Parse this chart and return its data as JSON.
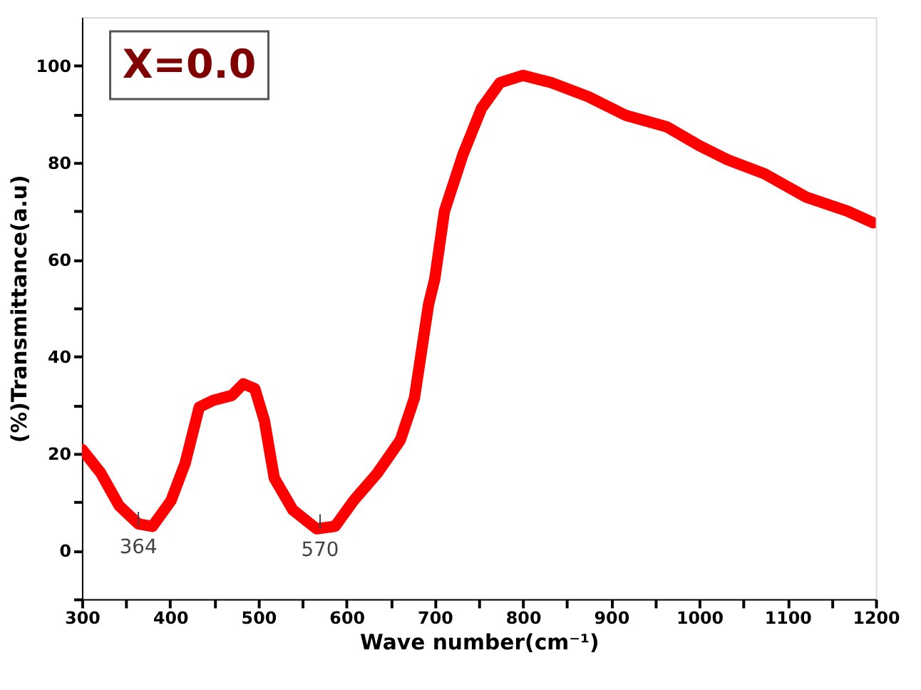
{
  "chart_data": {
    "type": "line",
    "title": "X=0.0",
    "xlabel": "Wave number(cm⁻¹)",
    "ylabel": "(%)Transmittance(a.u)",
    "x": [
      300,
      321,
      342,
      364,
      380,
      401,
      417,
      433,
      449,
      470,
      483,
      496,
      507,
      518,
      539,
      566,
      587,
      608,
      635,
      661,
      677,
      693,
      700,
      711,
      732,
      753,
      774,
      800,
      832,
      874,
      916,
      963,
      1000,
      1032,
      1074,
      1121,
      1168,
      1197
    ],
    "series": [
      {
        "color": "#ff0000",
        "values": [
          20.9,
          16.1,
          9.3,
          5.5,
          5,
          10.3,
          18,
          29.6,
          31,
          32,
          34.4,
          33.4,
          26.7,
          15,
          8.4,
          4.5,
          5,
          10.3,
          16,
          22.8,
          31.5,
          50.8,
          56,
          70,
          81.7,
          91.2,
          96.5,
          98,
          96.5,
          93.6,
          89.8,
          87.4,
          83.5,
          80.6,
          77.7,
          72.9,
          70,
          67.6
        ]
      }
    ],
    "xlim": [
      300,
      1200
    ],
    "ylim": [
      -10,
      110
    ],
    "xticks": [
      300,
      {
        "value": 350,
        "label": null
      },
      400,
      {
        "value": 450,
        "label": null
      },
      500,
      {
        "value": 550,
        "label": null
      },
      600,
      {
        "value": 650,
        "label": null
      },
      700,
      {
        "value": 750,
        "label": null
      },
      800,
      {
        "value": 850,
        "label": null
      },
      900,
      {
        "value": 950,
        "label": null
      },
      1000,
      {
        "value": 1050,
        "label": null
      },
      1100,
      {
        "value": 1150,
        "label": null
      },
      1200
    ],
    "yticks": [
      {
        "value": -10,
        "label": null
      },
      0,
      {
        "value": 10,
        "label": null
      },
      20,
      {
        "value": 30,
        "label": null
      },
      40,
      {
        "value": 50,
        "label": null
      },
      60,
      {
        "value": 70,
        "label": null
      },
      80,
      {
        "value": 90,
        "label": null
      },
      100
    ],
    "annotations": [
      {
        "text": "364",
        "x": 364,
        "y": 5
      },
      {
        "text": "570",
        "x": 570,
        "y": 4.5
      }
    ],
    "grid": false,
    "marker": "none",
    "line_style": "solid"
  }
}
